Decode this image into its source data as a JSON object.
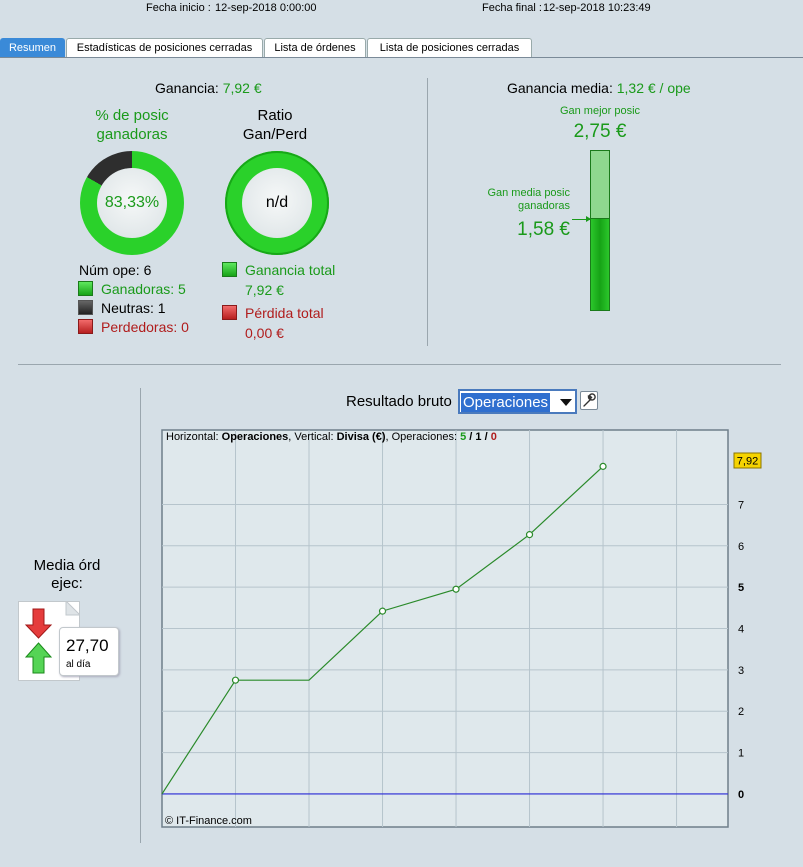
{
  "header": {
    "start_label": "Fecha inicio :",
    "start_value": "12-sep-2018 0:00:00",
    "end_label": "Fecha final :",
    "end_value": "12-sep-2018 10:23:49"
  },
  "tabs": [
    {
      "label": "Resumen",
      "active": true
    },
    {
      "label": "Estadísticas de posiciones cerradas",
      "active": false
    },
    {
      "label": "Lista de órdenes",
      "active": false
    },
    {
      "label": "Lista de posiciones cerradas",
      "active": false
    }
  ],
  "summary": {
    "profit_label": "Ganancia:",
    "profit_value": "7,92 €",
    "win_pct_title_1": "% de posic",
    "win_pct_title_2": "ganadoras",
    "win_pct_value": "83,33%",
    "win_fraction": 0.8333,
    "ratio_title_1": "Ratio",
    "ratio_title_2": "Gan/Perd",
    "ratio_value": "n/d",
    "num_ops": "Núm ope: 6",
    "winners": "Ganadoras: 5",
    "neutral": "Neutras: 1",
    "losers": "Perdedoras: 0",
    "total_gain_label": "Ganancia total",
    "total_gain_value": "7,92 €",
    "total_loss_label": "Pérdida total",
    "total_loss_value": "0,00 €"
  },
  "average": {
    "label": "Ganancia media:",
    "value": "1,32 € / ope",
    "best_label": "Gan mejor posic",
    "best_value": "2,75 €",
    "avg_win_label_1": "Gan media posic",
    "avg_win_label_2": "ganadoras",
    "avg_win_value": "1,58 €",
    "bar_max": 2.75,
    "bar_avg": 1.58
  },
  "orders": {
    "label_1": "Media órd",
    "label_2": "ejec:",
    "value": "27,70",
    "unit": "al día"
  },
  "result": {
    "label": "Resultado bruto",
    "select_value": "Operaciones",
    "caption": {
      "h_label": "Horizontal: ",
      "h_value": "Operaciones",
      "v_label": ", Vertical: ",
      "v_value": "Divisa (€)",
      "ops_label": ", Operaciones: ",
      "ops_win": "5",
      "sep1": " / ",
      "ops_neutral": "1",
      "sep2": " / ",
      "ops_loss": "0"
    },
    "copyright": "© IT-Finance.com"
  },
  "chart_data": {
    "type": "line",
    "x": [
      0,
      1,
      2,
      3,
      4,
      5,
      6
    ],
    "y": [
      0,
      2.75,
      2.75,
      4.42,
      4.95,
      6.27,
      7.92
    ],
    "markers": [
      1,
      3,
      4,
      5,
      6
    ],
    "xlim": [
      0,
      7.7
    ],
    "ylim": [
      -0.8,
      8.8
    ],
    "xticks": [
      1,
      2,
      3,
      4,
      5,
      6,
      7
    ],
    "yticks": [
      0,
      1,
      2,
      3,
      4,
      5,
      6,
      7
    ],
    "bold_ticks": [
      5,
      0
    ],
    "last_value_label": "7,92",
    "grid": true,
    "colors": {
      "line": "#2a8a2a",
      "baseline": "#2a2ad8",
      "grid": "#b6c4cc"
    }
  }
}
